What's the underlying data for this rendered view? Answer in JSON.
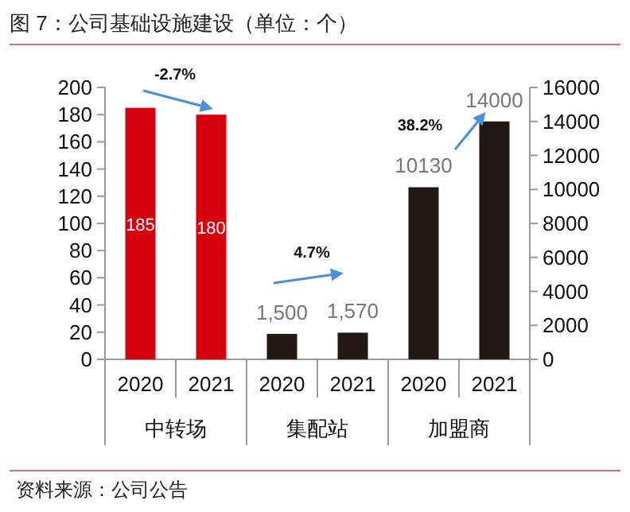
{
  "chart_data": {
    "type": "bar",
    "title": "图 7：公司基础设施建设（单位：个）",
    "categories": [
      "2020",
      "2021",
      "2020",
      "2021",
      "2020",
      "2021"
    ],
    "series": [
      {
        "color": "#d7000f",
        "values": [
          185,
          180,
          null,
          null,
          null,
          null
        ],
        "value_labels": [
          "185",
          "180",
          null,
          null,
          null,
          null
        ]
      },
      {
        "color": "#231815",
        "axis": "y2",
        "values": [
          null,
          null,
          1500,
          1570,
          10130,
          14000
        ],
        "value_labels": [
          null,
          null,
          "1,500",
          "1,570",
          "10130",
          "14000"
        ]
      }
    ],
    "ylim": [
      0,
      200
    ],
    "yticks": [
      0,
      20,
      40,
      60,
      80,
      100,
      120,
      140,
      160,
      180,
      200
    ],
    "y2lim": [
      0,
      16000
    ],
    "y2ticks": [
      0,
      2000,
      4000,
      6000,
      8000,
      10000,
      12000,
      14000,
      16000
    ],
    "annotations": [
      "-2.7%",
      "4.7%",
      "38.2%",
      "中转场",
      "集配站",
      "加盟商",
      "资料来源：公司公告"
    ]
  }
}
